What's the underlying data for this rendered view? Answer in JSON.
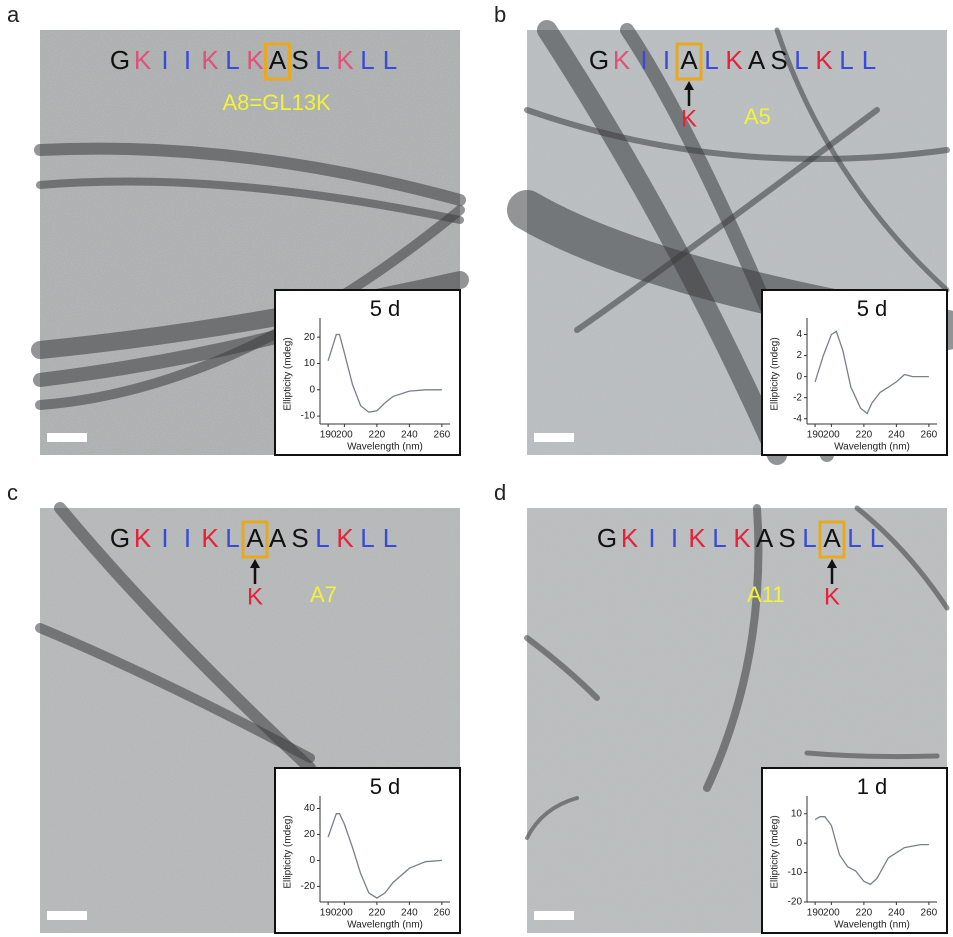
{
  "panels": [
    {
      "label": "a",
      "sequence": {
        "letters": [
          "G",
          "K",
          "I",
          "I",
          "K",
          "L",
          "K",
          "A",
          "S",
          "L",
          "K",
          "L",
          "L"
        ],
        "colors": [
          "#111",
          "#e0507a",
          "#3a4ad8",
          "#3a4ad8",
          "#e0507a",
          "#3a4ad8",
          "#e0507a",
          "#111",
          "#111",
          "#3a4ad8",
          "#e0507a",
          "#3a4ad8",
          "#3a4ad8"
        ],
        "boxed": 7
      },
      "annotation": {
        "label": "A8=GL13K",
        "label_color": "#f2f23a"
      },
      "inset": {
        "type": "line",
        "title": "5 d",
        "xlabel": "Wavelength (nm)",
        "ylabel": "Ellipticity (mdeg)",
        "color": "#7a8088",
        "x": [
          190,
          195,
          197,
          200,
          205,
          210,
          215,
          220,
          225,
          230,
          240,
          250,
          260
        ],
        "values": [
          11,
          21,
          21,
          14,
          2,
          -6,
          -8.5,
          -8,
          -5,
          -2.5,
          -0.5,
          0,
          0
        ],
        "xlim": [
          185,
          265
        ],
        "ylim": [
          -13,
          25
        ],
        "xticks": [
          190,
          200,
          220,
          240,
          260
        ],
        "yticks": [
          20,
          10,
          0,
          -10
        ]
      }
    },
    {
      "label": "b",
      "sequence": {
        "letters": [
          "G",
          "K",
          "I",
          "I",
          "A",
          "L",
          "K",
          "A",
          "S",
          "L",
          "K",
          "L",
          "L"
        ],
        "colors": [
          "#111",
          "#e0507a",
          "#3a4ad8",
          "#3a4ad8",
          "#111",
          "#3a4ad8",
          "#e8203a",
          "#111",
          "#111",
          "#3a4ad8",
          "#e8203a",
          "#3a4ad8",
          "#3a4ad8"
        ],
        "boxed": 4
      },
      "annotation": {
        "mutation": "K",
        "mutation_color": "#e8203a",
        "label": "A5",
        "label_color": "#f2f23a"
      },
      "inset": {
        "type": "line",
        "title": "5 d",
        "xlabel": "Wavelength (nm)",
        "ylabel": "Ellipticity (mdeg)",
        "color": "#7a8088",
        "x": [
          190,
          195,
          200,
          203,
          207,
          212,
          218,
          222,
          225,
          230,
          235,
          240,
          245,
          250,
          255,
          260
        ],
        "values": [
          -0.5,
          2,
          4,
          4.3,
          2.5,
          -1,
          -3,
          -3.5,
          -2.5,
          -1.5,
          -1,
          -0.5,
          0.2,
          0,
          0,
          0
        ],
        "xlim": [
          185,
          265
        ],
        "ylim": [
          -4.5,
          5
        ],
        "xticks": [
          190,
          200,
          220,
          240,
          260
        ],
        "yticks": [
          4,
          2,
          0,
          -2,
          -4
        ]
      }
    },
    {
      "label": "c",
      "sequence": {
        "letters": [
          "G",
          "K",
          "I",
          "I",
          "K",
          "L",
          "A",
          "A",
          "S",
          "L",
          "K",
          "L",
          "L"
        ],
        "colors": [
          "#111",
          "#e8203a",
          "#3a4ad8",
          "#3a4ad8",
          "#e8203a",
          "#3a4ad8",
          "#111",
          "#111",
          "#111",
          "#3a4ad8",
          "#e8203a",
          "#3a4ad8",
          "#3a4ad8"
        ],
        "boxed": 6
      },
      "annotation": {
        "mutation": "K",
        "mutation_color": "#e8203a",
        "label": "A7",
        "label_color": "#f2f23a"
      },
      "inset": {
        "type": "line",
        "title": "5 d",
        "xlabel": "Wavelength (nm)",
        "ylabel": "Ellipticity (mdeg)",
        "color": "#7a8088",
        "x": [
          190,
          195,
          197,
          200,
          205,
          210,
          215,
          220,
          225,
          230,
          240,
          250,
          260
        ],
        "values": [
          18,
          36,
          36,
          28,
          10,
          -10,
          -25,
          -29,
          -25,
          -17,
          -6,
          -1,
          0
        ],
        "xlim": [
          185,
          265
        ],
        "ylim": [
          -32,
          45
        ],
        "xticks": [
          190,
          200,
          220,
          240,
          260
        ],
        "yticks": [
          40,
          20,
          0,
          -20
        ]
      }
    },
    {
      "label": "d",
      "sequence": {
        "letters": [
          "G",
          "K",
          "I",
          "I",
          "K",
          "L",
          "K",
          "A",
          "S",
          "L",
          "A",
          "L",
          "L"
        ],
        "colors": [
          "#111",
          "#e8203a",
          "#3a4ad8",
          "#3a4ad8",
          "#e8203a",
          "#3a4ad8",
          "#e8203a",
          "#111",
          "#111",
          "#3a4ad8",
          "#111",
          "#3a4ad8",
          "#3a4ad8"
        ],
        "boxed": 10
      },
      "annotation": {
        "mutation": "K",
        "mutation_color": "#e8203a",
        "label": "A11",
        "label_color": "#f2f23a"
      },
      "inset": {
        "type": "line",
        "title": "1 d",
        "xlabel": "Wavelength (nm)",
        "ylabel": "Ellipticity (mdeg)",
        "color": "#7a8088",
        "x": [
          190,
          193,
          196,
          200,
          205,
          210,
          215,
          220,
          224,
          228,
          235,
          245,
          255,
          260
        ],
        "values": [
          8,
          9,
          9,
          6,
          -4,
          -8,
          -9.5,
          -13,
          -14,
          -12,
          -5,
          -1.5,
          -0.5,
          -0.5
        ],
        "xlim": [
          185,
          265
        ],
        "ylim": [
          -20,
          14
        ],
        "xticks": [
          190,
          200,
          220,
          240,
          260
        ],
        "yticks": [
          10,
          0,
          -10,
          -20
        ]
      }
    }
  ]
}
